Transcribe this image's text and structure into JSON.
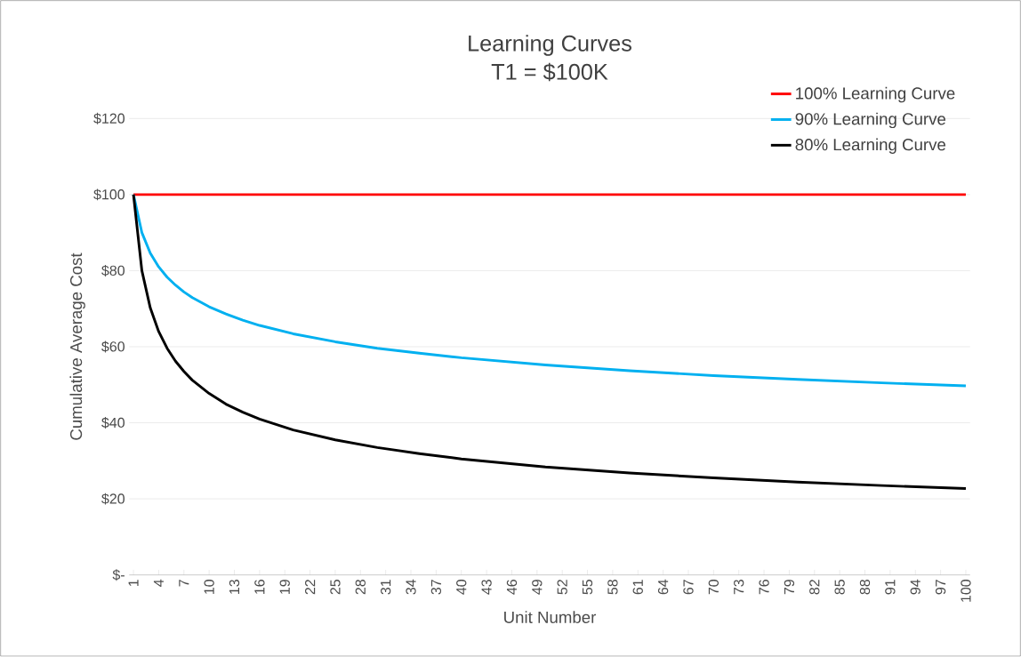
{
  "chart_data": {
    "type": "line",
    "title": "Learning Curves",
    "subtitle": "T1 = $100K",
    "xlabel": "Unit Number",
    "ylabel": "Cumulative Average Cost",
    "xlim": [
      0.5,
      100.5
    ],
    "xticks": [
      1,
      4,
      7,
      10,
      13,
      16,
      19,
      22,
      25,
      28,
      31,
      34,
      37,
      40,
      43,
      46,
      49,
      52,
      55,
      58,
      61,
      64,
      67,
      70,
      73,
      76,
      79,
      82,
      85,
      88,
      91,
      94,
      97,
      100
    ],
    "ylim": [
      0,
      120
    ],
    "yticks": [
      {
        "value": 0,
        "label": "$-"
      },
      {
        "value": 20,
        "label": "$20"
      },
      {
        "value": 40,
        "label": "$40"
      },
      {
        "value": 60,
        "label": "$60"
      },
      {
        "value": 80,
        "label": "$80"
      },
      {
        "value": 100,
        "label": "$100"
      },
      {
        "value": 120,
        "label": "$120"
      }
    ],
    "grid": "y",
    "legend": "top right",
    "marker": "none",
    "line_style": "solid",
    "series": [
      {
        "name": "100% Learning Curve",
        "color": "#ff0000",
        "x": [
          1,
          100
        ],
        "values": [
          100,
          100
        ]
      },
      {
        "name": "90% Learning Curve",
        "color": "#00b0f0",
        "x": [
          1,
          2,
          3,
          4,
          5,
          6,
          7,
          8,
          10,
          12,
          14,
          16,
          20,
          25,
          30,
          35,
          40,
          50,
          60,
          70,
          80,
          90,
          100
        ],
        "values": [
          100,
          90,
          84.6,
          81,
          78.3,
          76.2,
          74.4,
          72.9,
          70.5,
          68.6,
          67,
          65.6,
          63.4,
          61.3,
          59.6,
          58.3,
          57.1,
          55.2,
          53.7,
          52.4,
          51.4,
          50.5,
          49.7
        ]
      },
      {
        "name": "80% Learning Curve",
        "color": "#000000",
        "x": [
          1,
          2,
          3,
          4,
          5,
          6,
          7,
          8,
          10,
          12,
          14,
          16,
          20,
          25,
          30,
          35,
          40,
          50,
          60,
          70,
          80,
          90,
          100
        ],
        "values": [
          100,
          80,
          70.2,
          64,
          59.6,
          56.2,
          53.5,
          51.2,
          47.7,
          44.9,
          42.8,
          41,
          38.1,
          35.5,
          33.5,
          31.9,
          30.5,
          28.4,
          26.8,
          25.5,
          24.4,
          23.5,
          22.7
        ]
      }
    ]
  }
}
